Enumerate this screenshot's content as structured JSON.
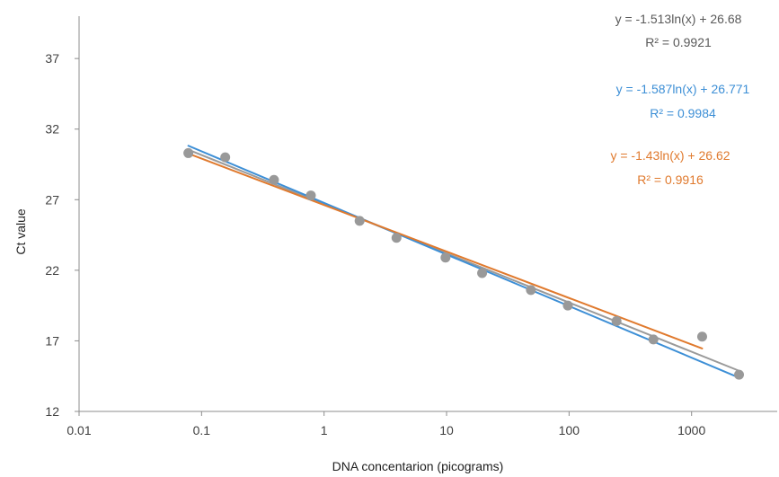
{
  "chart_data": {
    "type": "scatter",
    "title": "",
    "xlabel": "DNA concentarion (picograms)",
    "ylabel": "Ct value",
    "x_scale": "log",
    "xlim": [
      0.01,
      5000
    ],
    "ylim": [
      12,
      40
    ],
    "x_ticks": [
      0.01,
      0.1,
      1,
      10,
      100,
      1000
    ],
    "x_tick_labels": [
      "0.01",
      "0.1",
      "1",
      "10",
      "100",
      "1000"
    ],
    "y_ticks": [
      12,
      17,
      22,
      27,
      32,
      37
    ],
    "y_tick_labels": [
      "12",
      "17",
      "22",
      "27",
      "32",
      "37"
    ],
    "grid": false,
    "points": {
      "color": "#999999",
      "x": [
        0.078,
        0.156,
        0.39,
        0.78,
        1.95,
        3.9,
        9.8,
        19.5,
        48.8,
        97.7,
        244,
        488,
        1220,
        2440
      ],
      "y": [
        30.3,
        30.0,
        28.4,
        27.3,
        25.5,
        24.3,
        22.9,
        21.8,
        20.6,
        19.5,
        18.4,
        17.1,
        17.3,
        14.6
      ]
    },
    "trendlines": [
      {
        "color": "#9a9a9a",
        "slope": -1.513,
        "intercept": 26.68,
        "x_range": [
          0.078,
          2440
        ],
        "equation": "y = -1.513ln(x) + 26.68",
        "r2": "R² = 0.9921"
      },
      {
        "color": "#3d8fd6",
        "slope": -1.587,
        "intercept": 26.771,
        "x_range": [
          0.078,
          2440
        ],
        "equation": "y = -1.587ln(x) + 26.771",
        "r2": "R² = 0.9984"
      },
      {
        "color": "#e07a2e",
        "slope": -1.43,
        "intercept": 26.62,
        "x_range": [
          0.078,
          1220
        ],
        "equation": "y = -1.43ln(x) + 26.62",
        "r2": "R² = 0.9916"
      }
    ]
  }
}
